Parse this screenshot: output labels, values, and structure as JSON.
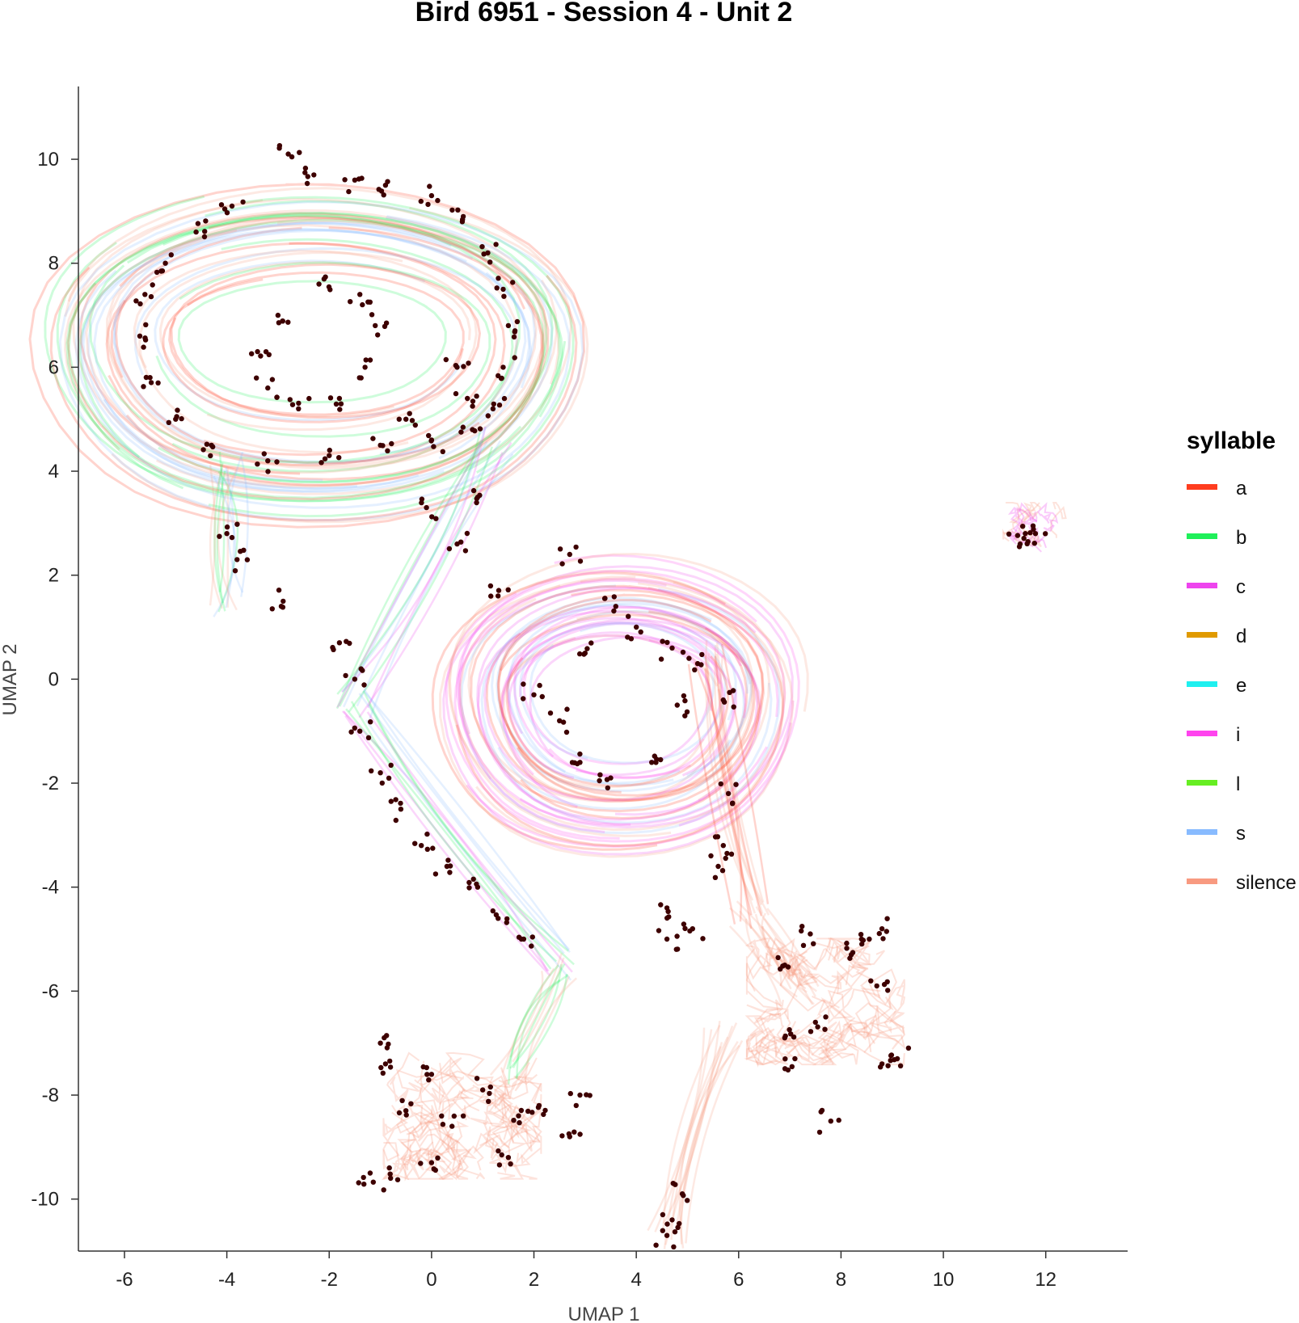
{
  "chart_data": {
    "type": "scatter",
    "title": "Bird 6951 - Session 4 - Unit 2",
    "xlabel": "UMAP 1",
    "ylabel": "UMAP 2",
    "xlim": [
      -6.9,
      13.6
    ],
    "ylim": [
      -11.0,
      11.4
    ],
    "xticks": [
      -6,
      -4,
      -2,
      0,
      2,
      4,
      6,
      8,
      10,
      12
    ],
    "yticks": [
      -10,
      -8,
      -6,
      -4,
      -2,
      0,
      2,
      4,
      6,
      8,
      10
    ],
    "grid": false,
    "legend": {
      "title": "syllable",
      "position": "right",
      "entries": [
        {
          "label": "a",
          "color": "#ff3d1f"
        },
        {
          "label": "b",
          "color": "#1ff05a"
        },
        {
          "label": "c",
          "color": "#ee44ee"
        },
        {
          "label": "d",
          "color": "#e09a00"
        },
        {
          "label": "e",
          "color": "#1ff0f0"
        },
        {
          "label": "i",
          "color": "#ff44ee"
        },
        {
          "label": "l",
          "color": "#66ee22"
        },
        {
          "label": "s",
          "color": "#88bbff"
        },
        {
          "label": "silence",
          "color": "#f89a80"
        }
      ]
    },
    "spike_color": "#3d0000",
    "trajectories": [
      {
        "region": "upper ring",
        "center": [
          -2.3,
          6.3
        ],
        "radius_x": [
          2.6,
          5.9
        ],
        "radius_y": [
          1.2,
          3.8
        ],
        "syllables": [
          "a",
          "b",
          "s",
          "silence"
        ]
      },
      {
        "region": "middle ring",
        "center": [
          3.7,
          -0.5
        ],
        "radius_x": [
          1.8,
          3.6
        ],
        "radius_y": [
          1.3,
          2.9
        ],
        "syllables": [
          "c",
          "s",
          "i",
          "a",
          "silence"
        ]
      },
      {
        "region": "bottom-left cluster",
        "center": [
          0.6,
          -8.4
        ],
        "syllables": [
          "silence"
        ]
      },
      {
        "region": "bottom-right cluster",
        "center": [
          7.7,
          -6.2
        ],
        "syllables": [
          "silence"
        ]
      },
      {
        "region": "far-right cluster",
        "center": [
          11.8,
          2.9
        ],
        "syllables": [
          "silence",
          "c"
        ]
      }
    ],
    "spikes_sample": [
      [
        -2.8,
        10.1
      ],
      [
        -2.3,
        9.7
      ],
      [
        -1.5,
        9.6
      ],
      [
        -0.9,
        9.5
      ],
      [
        0.0,
        9.3
      ],
      [
        0.6,
        8.8
      ],
      [
        1.1,
        8.2
      ],
      [
        1.4,
        7.5
      ],
      [
        1.5,
        6.8
      ],
      [
        1.4,
        6.0
      ],
      [
        1.2,
        5.2
      ],
      [
        0.8,
        4.8
      ],
      [
        0.0,
        4.6
      ],
      [
        -1.0,
        4.5
      ],
      [
        -2.0,
        4.3
      ],
      [
        -3.2,
        4.2
      ],
      [
        -4.3,
        4.5
      ],
      [
        -5.0,
        5.0
      ],
      [
        -5.5,
        5.8
      ],
      [
        -5.7,
        6.6
      ],
      [
        -5.6,
        7.4
      ],
      [
        -5.2,
        8.0
      ],
      [
        -4.6,
        8.6
      ],
      [
        -3.9,
        9.1
      ],
      [
        -2.2,
        7.6
      ],
      [
        -1.4,
        7.4
      ],
      [
        -1.1,
        6.8
      ],
      [
        -1.3,
        6.0
      ],
      [
        -1.8,
        5.4
      ],
      [
        -2.6,
        5.2
      ],
      [
        -3.2,
        5.6
      ],
      [
        -3.4,
        6.3
      ],
      [
        -3.0,
        7.0
      ],
      [
        0.5,
        6.0
      ],
      [
        0.7,
        5.4
      ],
      [
        -0.5,
        5.0
      ],
      [
        -4.0,
        2.8
      ],
      [
        -3.8,
        2.3
      ],
      [
        -2.9,
        1.5
      ],
      [
        -1.8,
        0.7
      ],
      [
        -1.5,
        0.0
      ],
      [
        -1.4,
        -1.0
      ],
      [
        -1.0,
        -1.8
      ],
      [
        -0.6,
        -2.5
      ],
      [
        -0.2,
        -3.2
      ],
      [
        0.3,
        -3.6
      ],
      [
        0.9,
        -4.0
      ],
      [
        1.3,
        -4.6
      ],
      [
        1.8,
        -5.0
      ],
      [
        2.5,
        -0.8
      ],
      [
        2.9,
        -1.6
      ],
      [
        3.5,
        -1.9
      ],
      [
        4.3,
        -1.6
      ],
      [
        4.8,
        -0.5
      ],
      [
        4.7,
        0.6
      ],
      [
        4.0,
        1.0
      ],
      [
        3.0,
        0.5
      ],
      [
        2.0,
        -0.3
      ],
      [
        1.3,
        1.6
      ],
      [
        0.5,
        2.6
      ],
      [
        -0.1,
        3.3
      ],
      [
        0.9,
        3.5
      ],
      [
        5.2,
        0.3
      ],
      [
        5.7,
        -0.4
      ],
      [
        5.8,
        -2.2
      ],
      [
        5.7,
        -3.2
      ],
      [
        5.6,
        -3.6
      ],
      [
        4.6,
        -4.4
      ],
      [
        4.6,
        -5.0
      ],
      [
        5.1,
        -4.8
      ],
      [
        3.6,
        1.4
      ],
      [
        2.7,
        2.4
      ],
      [
        -1.0,
        -7.0
      ],
      [
        -0.9,
        -7.4
      ],
      [
        0.0,
        -7.6
      ],
      [
        1.0,
        -7.9
      ],
      [
        1.7,
        -8.4
      ],
      [
        2.1,
        -8.2
      ],
      [
        2.9,
        -8.0
      ],
      [
        2.7,
        -8.8
      ],
      [
        1.5,
        -9.2
      ],
      [
        0.0,
        -9.3
      ],
      [
        -0.8,
        -9.6
      ],
      [
        -1.2,
        -9.5
      ],
      [
        0.4,
        -8.6
      ],
      [
        -0.5,
        -8.3
      ],
      [
        7.8,
        -8.5
      ],
      [
        7.1,
        -7.3
      ],
      [
        6.9,
        -6.9
      ],
      [
        7.5,
        -6.6
      ],
      [
        8.2,
        -5.3
      ],
      [
        8.4,
        -5.0
      ],
      [
        8.8,
        -4.8
      ],
      [
        8.7,
        -5.9
      ],
      [
        9.1,
        -7.3
      ],
      [
        8.8,
        -7.4
      ],
      [
        6.9,
        -5.5
      ],
      [
        7.4,
        -4.9
      ],
      [
        4.6,
        -10.7
      ],
      [
        4.7,
        -10.4
      ],
      [
        4.9,
        -9.9
      ],
      [
        11.6,
        2.8
      ],
      [
        11.8,
        2.8
      ],
      [
        11.5,
        2.6
      ]
    ]
  }
}
